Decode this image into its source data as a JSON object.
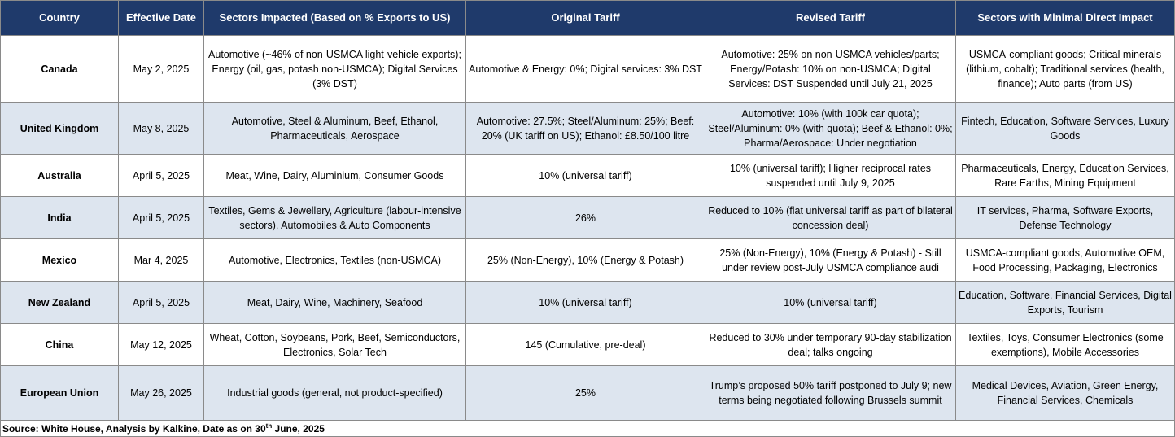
{
  "header": {
    "country": "Country",
    "effective_date": "Effective Date",
    "sectors_impacted": "Sectors Impacted (Based on % Exports to US)",
    "original_tariff": "Original Tariff",
    "revised_tariff": "Revised Tariff",
    "minimal_impact": "Sectors with Minimal Direct Impact"
  },
  "rows": [
    {
      "country": "Canada",
      "date": "May 2, 2025",
      "sectors": "Automotive (~46% of non-USMCA light-vehicle exports); Energy (oil, gas, potash non-USMCA); Digital Services (3% DST)",
      "original": "Automotive & Energy: 0%; Digital services: 3% DST",
      "revised": "Automotive: 25% on non-USMCA vehicles/parts; Energy/Potash: 10% on non-USMCA; Digital Services: DST Suspended until July 21, 2025",
      "minimal": "USMCA-compliant goods; Critical minerals (lithium, cobalt); Traditional services (health, finance); Auto parts (from US)"
    },
    {
      "country": "United Kingdom",
      "date": "May 8, 2025",
      "sectors": "Automotive, Steel & Aluminum, Beef, Ethanol, Pharmaceuticals, Aerospace",
      "original": "Automotive: 27.5%; Steel/Aluminum: 25%; Beef: 20% (UK tariff on US); Ethanol: £8.50/100 litre",
      "revised": "Automotive: 10% (with 100k car quota); Steel/Aluminum: 0% (with quota); Beef & Ethanol: 0%; Pharma/Aerospace: Under negotiation",
      "minimal": "Fintech, Education, Software Services, Luxury Goods"
    },
    {
      "country": "Australia",
      "date": "April 5, 2025",
      "sectors": "Meat, Wine, Dairy, Aluminium, Consumer Goods",
      "original": "10% (universal tariff)",
      "revised": "10% (universal tariff); Higher reciprocal rates suspended until July 9, 2025",
      "minimal": "Pharmaceuticals, Energy, Education Services, Rare Earths, Mining Equipment"
    },
    {
      "country": "India",
      "date": "April 5, 2025",
      "sectors": "Textiles, Gems & Jewellery, Agriculture (labour-intensive sectors), Automobiles & Auto Components",
      "original": "26%",
      "revised": "Reduced to 10% (flat universal tariff as part of bilateral concession deal)",
      "minimal": "IT services, Pharma, Software Exports, Defense Technology"
    },
    {
      "country": "Mexico",
      "date": "Mar 4, 2025",
      "sectors": "Automotive, Electronics, Textiles (non-USMCA)",
      "original": "25% (Non-Energy), 10% (Energy & Potash)",
      "revised": "25% (Non-Energy), 10% (Energy & Potash) - Still under review post-July USMCA compliance audi",
      "minimal": "USMCA-compliant goods, Automotive OEM, Food Processing, Packaging, Electronics"
    },
    {
      "country": "New Zealand",
      "date": "April 5, 2025",
      "sectors": "Meat, Dairy, Wine, Machinery, Seafood",
      "original": "10% (universal tariff)",
      "revised": "10% (universal tariff)",
      "minimal": "Education, Software, Financial Services, Digital Exports, Tourism"
    },
    {
      "country": "China",
      "date": "May 12, 2025",
      "sectors": "Wheat, Cotton, Soybeans, Pork, Beef, Semiconductors, Electronics, Solar Tech",
      "original": "145 (Cumulative, pre-deal)",
      "revised": "Reduced to 30% under temporary 90-day stabilization deal; talks ongoing",
      "minimal": "Textiles, Toys, Consumer Electronics (some exemptions), Mobile Accessories"
    },
    {
      "country": "European Union",
      "date": "May 26, 2025",
      "sectors": "Industrial goods (general, not product-specified)",
      "original": "25%",
      "revised": "Trump’s proposed 50% tariff postponed to July 9; new terms being negotiated following Brussels summit",
      "minimal": "Medical Devices, Aviation, Green Energy, Financial Services, Chemicals"
    }
  ],
  "footer": {
    "source_prefix": "Source: White House, Analysis by Kalkine, Date as on 30",
    "source_sup": "th",
    "source_suffix": " June, 2025"
  },
  "colors": {
    "header_bg": "#1f3a6b",
    "header_text": "#ffffff",
    "alt_row_bg": "#dde5ef",
    "border": "#8a8a8a"
  }
}
